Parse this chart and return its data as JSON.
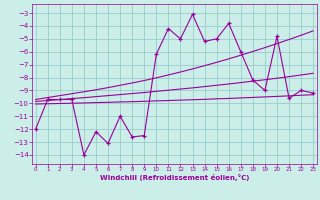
{
  "x": [
    0,
    1,
    2,
    3,
    4,
    5,
    6,
    7,
    8,
    9,
    10,
    11,
    12,
    13,
    14,
    15,
    16,
    17,
    18,
    19,
    20,
    21,
    22,
    23
  ],
  "main_line": [
    -12.0,
    -9.7,
    -9.7,
    -9.7,
    -14.0,
    -12.2,
    -13.1,
    -11.0,
    -12.6,
    -12.5,
    -6.2,
    -4.2,
    -5.0,
    -3.1,
    -5.2,
    -5.0,
    -3.8,
    -6.0,
    -8.2,
    -9.0,
    -4.8,
    -9.6,
    -9.0,
    -9.2
  ],
  "trend_top": [
    -9.7,
    -9.55,
    -9.4,
    -9.25,
    -9.1,
    -8.95,
    -8.78,
    -8.6,
    -8.42,
    -8.23,
    -8.02,
    -7.8,
    -7.57,
    -7.33,
    -7.08,
    -6.82,
    -6.55,
    -6.27,
    -5.98,
    -5.68,
    -5.37,
    -5.05,
    -4.72,
    -4.38
  ],
  "trend_mid": [
    -9.85,
    -9.78,
    -9.71,
    -9.63,
    -9.56,
    -9.48,
    -9.4,
    -9.32,
    -9.24,
    -9.16,
    -9.07,
    -8.98,
    -8.89,
    -8.8,
    -8.7,
    -8.6,
    -8.5,
    -8.39,
    -8.28,
    -8.17,
    -8.05,
    -7.93,
    -7.8,
    -7.67
  ],
  "trend_bot": [
    -10.05,
    -10.03,
    -10.01,
    -9.99,
    -9.97,
    -9.94,
    -9.92,
    -9.89,
    -9.87,
    -9.84,
    -9.81,
    -9.78,
    -9.75,
    -9.72,
    -9.69,
    -9.65,
    -9.62,
    -9.58,
    -9.54,
    -9.5,
    -9.46,
    -9.42,
    -9.37,
    -9.33
  ],
  "color": "#990099",
  "bg_color": "#cceee8",
  "grid_color": "#99cccc",
  "xlabel": "Windchill (Refroidissement éolien,°C)",
  "xlim": [
    -0.3,
    23.3
  ],
  "ylim": [
    -14.7,
    -2.3
  ],
  "yticks": [
    -14,
    -13,
    -12,
    -11,
    -10,
    -9,
    -8,
    -7,
    -6,
    -5,
    -4,
    -3
  ],
  "xticks": [
    0,
    1,
    2,
    3,
    4,
    5,
    6,
    7,
    8,
    9,
    10,
    11,
    12,
    13,
    14,
    15,
    16,
    17,
    18,
    19,
    20,
    21,
    22,
    23
  ]
}
